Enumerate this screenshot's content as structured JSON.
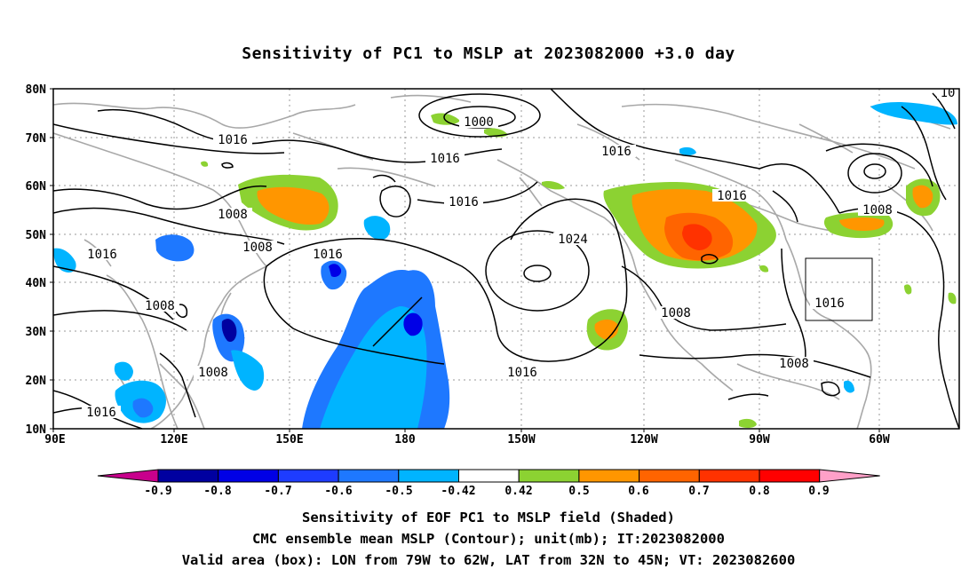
{
  "title": "Sensitivity of PC1 to MSLP at 2023082000 +3.0 day",
  "axes": {
    "x_ticks": [
      "90E",
      "120E",
      "150E",
      "180",
      "150W",
      "120W",
      "90W",
      "60W"
    ],
    "y_ticks": [
      "80N",
      "70N",
      "60N",
      "50N",
      "40N",
      "30N",
      "20N",
      "10N"
    ]
  },
  "contour_labels": [
    "1000",
    "1016",
    "1016",
    "1016",
    "1016",
    "1016",
    "1008",
    "1008",
    "1016",
    "1024",
    "1016",
    "1008",
    "1016",
    "1008",
    "1008",
    "1016",
    "1008",
    "1008",
    "1016",
    "10"
  ],
  "colorbar": {
    "ticks": [
      "-0.9",
      "-0.8",
      "-0.7",
      "-0.6",
      "-0.5",
      "-0.42",
      "0.42",
      "0.5",
      "0.6",
      "0.7",
      "0.8",
      "0.9"
    ],
    "colors": [
      "#c8008c",
      "#0000a0",
      "#0000e6",
      "#1e3cff",
      "#1e78ff",
      "#00b4ff",
      "#ffffff",
      "#8cd232",
      "#ff9600",
      "#ff6400",
      "#ff3200",
      "#ff0000",
      "#ffa0c8"
    ]
  },
  "captions": {
    "line1": "Sensitivity of EOF PC1 to MSLP field (Shaded)",
    "line2": "CMC ensemble mean MSLP (Contour); unit(mb); IT:2023082000",
    "line3": "Valid area (box): LON from 79W to 62W, LAT from 32N to 45N; VT: 2023082600"
  }
}
